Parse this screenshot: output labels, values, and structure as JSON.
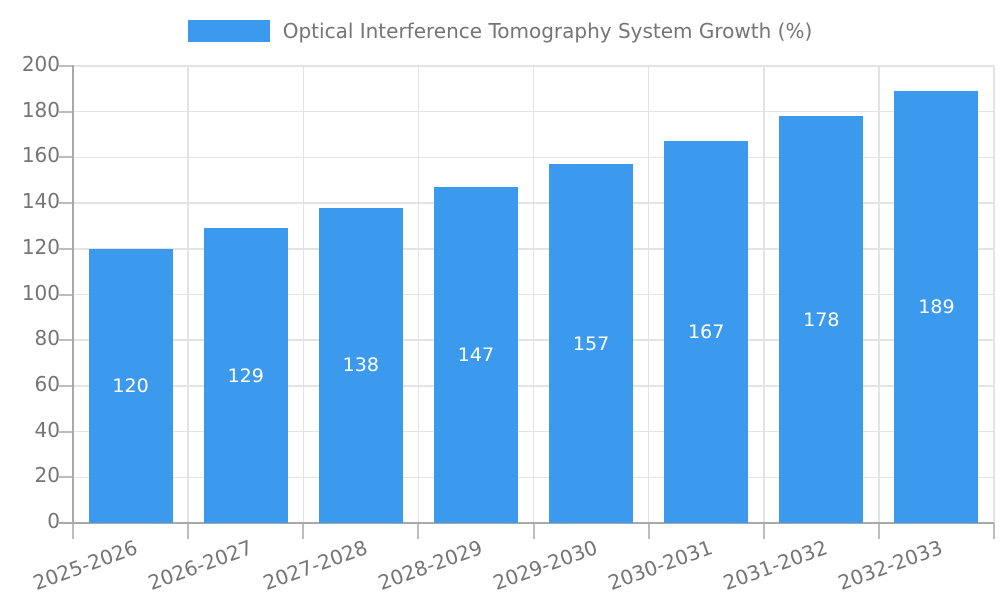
{
  "legend": {
    "label": "Optical Interference Tomography System Growth (%)"
  },
  "chart_data": {
    "type": "bar",
    "title": "Optical Interference Tomography System Growth (%)",
    "series_name": "Optical Interference Tomography System Growth (%)",
    "categories": [
      "2025-2026",
      "2026-2027",
      "2027-2028",
      "2028-2029",
      "2029-2030",
      "2030-2031",
      "2031-2032",
      "2032-2033"
    ],
    "values": [
      120,
      129,
      138,
      147,
      157,
      167,
      178,
      189
    ],
    "value_labels": [
      "120",
      "129",
      "138",
      "147",
      "157",
      "167",
      "178",
      "189"
    ],
    "xlabel": "",
    "ylabel": "",
    "ylim": [
      0,
      200
    ],
    "ytick_step": 20,
    "y_tick_labels": [
      "0",
      "20",
      "40",
      "60",
      "80",
      "100",
      "120",
      "140",
      "160",
      "180",
      "200"
    ],
    "x_label_rotation_deg": -20,
    "grid": true,
    "legend_position": "top",
    "colors": {
      "bar_fill": "#3B99EE",
      "value_label_text": "#FFFFFF",
      "grid_line": "#E3E3E3",
      "axis_line": "#A9A9A9",
      "tick_mark": "#BDBDBD",
      "tick_text": "#757575",
      "legend_text": "#757575",
      "background": "#FFFFFF"
    }
  }
}
